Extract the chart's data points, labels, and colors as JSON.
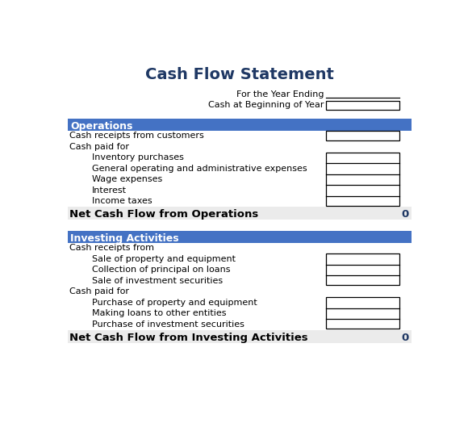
{
  "title": "Cash Flow Statement",
  "title_color": "#1F3864",
  "header_bg": "#4472C4",
  "header_text_color": "#FFFFFF",
  "net_row_bg": "#EBEBEB",
  "body_text_color": "#000000",
  "sections": [
    {
      "header": "Operations",
      "rows": [
        {
          "label": "Cash receipts from customers",
          "indent": 0,
          "has_box": true
        },
        {
          "label": "Cash paid for",
          "indent": 0,
          "has_box": false
        },
        {
          "label": "Inventory purchases",
          "indent": 1,
          "has_box": true
        },
        {
          "label": "General operating and administrative expenses",
          "indent": 1,
          "has_box": true
        },
        {
          "label": "Wage expenses",
          "indent": 1,
          "has_box": true
        },
        {
          "label": "Interest",
          "indent": 1,
          "has_box": true
        },
        {
          "label": "Income taxes",
          "indent": 1,
          "has_box": true
        }
      ],
      "net_label": "Net Cash Flow from Operations",
      "net_value": "0"
    },
    {
      "header": "Investing Activities",
      "rows": [
        {
          "label": "Cash receipts from",
          "indent": 0,
          "has_box": false
        },
        {
          "label": "Sale of property and equipment",
          "indent": 1,
          "has_box": true
        },
        {
          "label": "Collection of principal on loans",
          "indent": 1,
          "has_box": true
        },
        {
          "label": "Sale of investment securities",
          "indent": 1,
          "has_box": true
        },
        {
          "label": "Cash paid for",
          "indent": 0,
          "has_box": false
        },
        {
          "label": "Purchase of property and equipment",
          "indent": 1,
          "has_box": true
        },
        {
          "label": "Making loans to other entities",
          "indent": 1,
          "has_box": true
        },
        {
          "label": "Purchase of investment securities",
          "indent": 1,
          "has_box": true
        }
      ],
      "net_label": "Net Cash Flow from Investing Activities",
      "net_value": "0"
    }
  ],
  "figsize": [
    5.8,
    5.5
  ],
  "dpi": 100
}
